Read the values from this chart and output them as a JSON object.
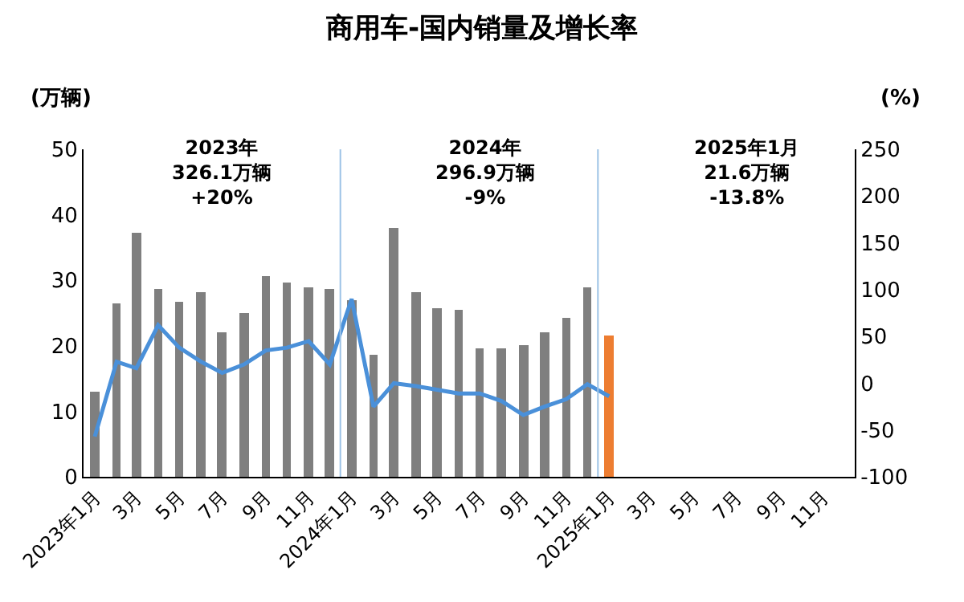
{
  "chart_data": {
    "type": "bar",
    "title": "商用车-国内销量及增长率",
    "ylabel": "(万辆)",
    "y2label": "(%)",
    "x": [
      "2023-01",
      "2023-02",
      "2023-03",
      "2023-04",
      "2023-05",
      "2023-06",
      "2023-07",
      "2023-08",
      "2023-09",
      "2023-10",
      "2023-11",
      "2023-12",
      "2024-01",
      "2024-02",
      "2024-03",
      "2024-04",
      "2024-05",
      "2024-06",
      "2024-07",
      "2024-08",
      "2024-09",
      "2024-10",
      "2024-11",
      "2024-12",
      "2025-01"
    ],
    "series": [
      {
        "colors": [
          "#7f7f7f",
          "#7f7f7f",
          "#7f7f7f",
          "#7f7f7f",
          "#7f7f7f",
          "#7f7f7f",
          "#7f7f7f",
          "#7f7f7f",
          "#7f7f7f",
          "#7f7f7f",
          "#7f7f7f",
          "#7f7f7f",
          "#7f7f7f",
          "#7f7f7f",
          "#7f7f7f",
          "#7f7f7f",
          "#7f7f7f",
          "#7f7f7f",
          "#7f7f7f",
          "#7f7f7f",
          "#7f7f7f",
          "#7f7f7f",
          "#7f7f7f",
          "#7f7f7f",
          "#ed7d31"
        ],
        "values": [
          12.9,
          26.5,
          37.3,
          28.7,
          26.6,
          28.3,
          22.0,
          25.0,
          30.6,
          29.7,
          28.9,
          28.7,
          27.0,
          18.7,
          37.9,
          28.2,
          25.7,
          25.4,
          19.7,
          19.7,
          20.1,
          22.1,
          24.3,
          28.9,
          21.6
        ]
      },
      {
        "type": "line",
        "axis": "y2",
        "color": "#4a90d9",
        "marker": "none",
        "line_style": "solid",
        "values": [
          -57,
          23,
          16,
          62,
          38,
          23,
          11,
          20,
          35,
          38,
          45,
          20,
          90,
          -25,
          0,
          -3,
          -7,
          -11,
          -11,
          -19,
          -34,
          -25,
          -17,
          -1,
          -14
        ]
      }
    ],
    "xlim": [
      "2022-12-16",
      "2025-12-16"
    ],
    "xticks": [
      {
        "value": "2023-01",
        "label": "2023年1月"
      },
      {
        "value": "2023-03",
        "label": "3月"
      },
      {
        "value": "2023-05",
        "label": "5月"
      },
      {
        "value": "2023-07",
        "label": "7月"
      },
      {
        "value": "2023-09",
        "label": "9月"
      },
      {
        "value": "2023-11",
        "label": "11月"
      },
      {
        "value": "2024-01",
        "label": "2024年1月"
      },
      {
        "value": "2024-03",
        "label": "3月"
      },
      {
        "value": "2024-05",
        "label": "5月"
      },
      {
        "value": "2024-07",
        "label": "7月"
      },
      {
        "value": "2024-09",
        "label": "9月"
      },
      {
        "value": "2024-11",
        "label": "11月"
      },
      {
        "value": "2025-01",
        "label": "2025年1月"
      },
      {
        "value": "2025-03",
        "label": "3月"
      },
      {
        "value": "2025-05",
        "label": "5月"
      },
      {
        "value": "2025-07",
        "label": "7月"
      },
      {
        "value": "2025-09",
        "label": "9月"
      },
      {
        "value": "2025-11",
        "label": "11月"
      }
    ],
    "ylim": [
      0,
      50
    ],
    "yticks": [
      0,
      10,
      20,
      30,
      40,
      50
    ],
    "y2lim": [
      -100,
      250
    ],
    "y2ticks": [
      -100,
      -50,
      0,
      50,
      100,
      150,
      200,
      250
    ],
    "ref_lines": [
      {
        "axis": "x",
        "value": "2023-12-16",
        "color": "#9dc3e6"
      },
      {
        "axis": "x",
        "value": "2024-12-16",
        "color": "#9dc3e6"
      }
    ],
    "annotations": [
      "2023年\n326.1万辆\n+20%",
      "2024年\n296.9万辆\n-9%",
      "2025年1月\n21.6万辆\n-13.8%"
    ],
    "legend": false
  }
}
